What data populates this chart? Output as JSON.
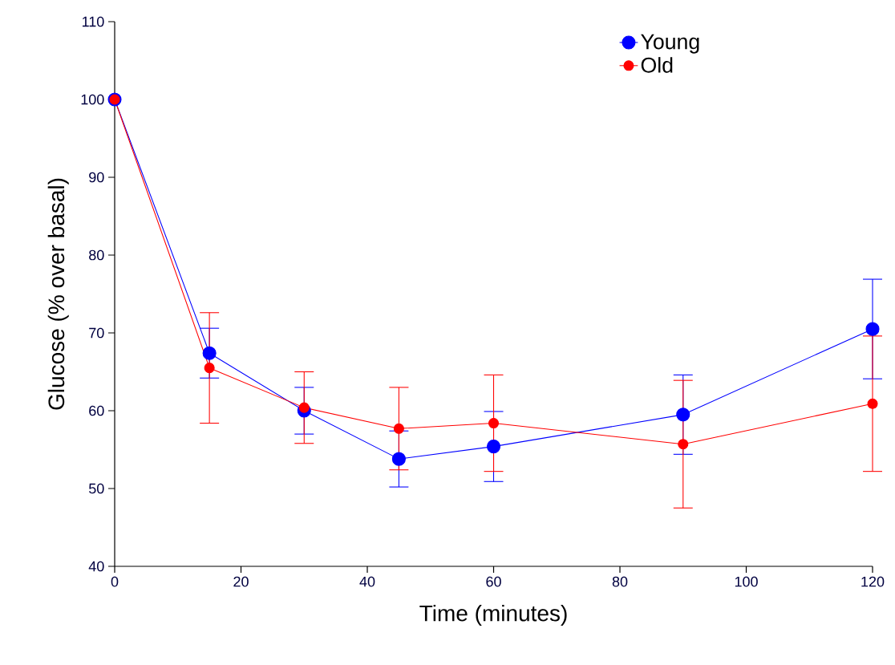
{
  "chart_data": {
    "type": "line",
    "xlabel": "Time (minutes)",
    "ylabel": "Glucose (% over basal)",
    "x": [
      0,
      15,
      30,
      45,
      60,
      90,
      120
    ],
    "series": [
      {
        "name": "Young",
        "color": "#0000ff",
        "values": [
          100,
          67.4,
          60.0,
          53.8,
          55.4,
          59.5,
          70.5
        ],
        "errors": [
          null,
          3.2,
          3.0,
          3.6,
          4.5,
          5.1,
          6.4
        ]
      },
      {
        "name": "Old",
        "color": "#ff0000",
        "values": [
          100,
          65.5,
          60.4,
          57.7,
          58.4,
          55.7,
          60.9
        ],
        "errors": [
          null,
          7.1,
          4.6,
          5.3,
          6.2,
          8.2,
          8.7
        ]
      }
    ],
    "xlim": [
      0,
      120
    ],
    "ylim": [
      40,
      110
    ],
    "xticks": [
      0,
      20,
      40,
      60,
      80,
      100,
      120
    ],
    "yticks": [
      40,
      50,
      60,
      70,
      80,
      90,
      100,
      110
    ],
    "grid": false,
    "legend": "top right",
    "marker": "circle",
    "line_style": "solid"
  }
}
